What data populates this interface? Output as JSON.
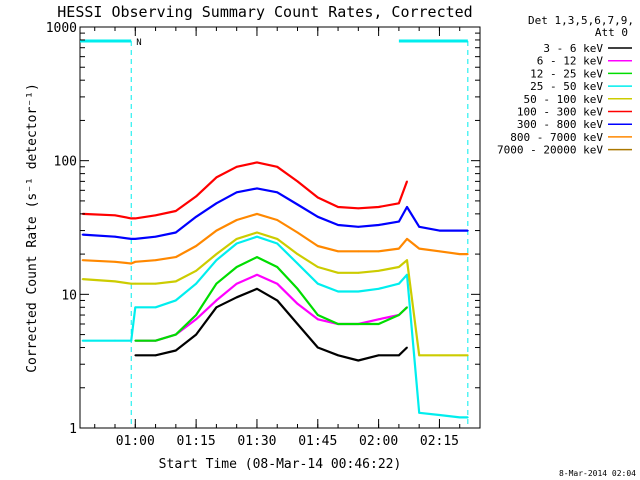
{
  "chart_data": {
    "type": "line",
    "title": "HESSI Observing Summary Count Rates, Corrected",
    "xlabel": "Start Time (08-Mar-14 00:46:22)",
    "ylabel": "Corrected Count Rate (s⁻¹ detector⁻¹)",
    "x_unit": "time (HH:MM, 08-Mar-2014)",
    "xlim": [
      "00:46:22",
      "02:25:00"
    ],
    "x_ticks": [
      "01:00",
      "01:15",
      "01:30",
      "01:45",
      "02:00",
      "02:15"
    ],
    "y_scale": "log",
    "ylim": [
      1,
      1000
    ],
    "y_ticks": [
      "1",
      "10",
      "100",
      "1000"
    ],
    "grid": false,
    "legend_position": "right",
    "legend_header": [
      "Det 1,3,5,6,7,9,",
      "Att 0"
    ],
    "date_stamp": "8-Mar-2014 02:04",
    "night_label": "N",
    "x": [
      "00:47",
      "00:55",
      "00:59",
      "01:00",
      "01:05",
      "01:10",
      "01:15",
      "01:20",
      "01:25",
      "01:30",
      "01:35",
      "01:40",
      "01:45",
      "01:50",
      "01:55",
      "02:00",
      "02:05",
      "02:07",
      "02:10",
      "02:15",
      "02:20",
      "02:22"
    ],
    "series": [
      {
        "name": "3 - 6 keV",
        "color": "#000000",
        "values": [
          null,
          null,
          null,
          3.5,
          3.5,
          3.8,
          5,
          8,
          9.5,
          11,
          9,
          6,
          4,
          3.5,
          3.2,
          3.5,
          3.5,
          4,
          null,
          null,
          null,
          null
        ]
      },
      {
        "name": "6 - 12 keV",
        "color": "#ff00ff",
        "values": [
          null,
          null,
          null,
          4.5,
          4.5,
          5,
          6.5,
          9,
          12,
          14,
          12,
          8.5,
          6.5,
          6,
          6,
          6.5,
          7,
          8,
          null,
          null,
          null,
          null
        ]
      },
      {
        "name": "12 - 25 keV",
        "color": "#00dd00",
        "values": [
          null,
          null,
          null,
          4.5,
          4.5,
          5,
          7,
          12,
          16,
          19,
          16,
          11,
          7,
          6,
          6,
          6,
          7,
          8,
          null,
          null,
          null,
          null
        ]
      },
      {
        "name": "25 - 50 keV",
        "color": "#00eeee",
        "values": [
          4.5,
          4.5,
          4.5,
          8,
          8,
          9,
          12,
          18,
          24,
          27,
          24,
          17,
          12,
          10.5,
          10.5,
          11,
          12,
          14,
          1.3,
          1.25,
          1.2,
          1.2
        ]
      },
      {
        "name": "50 - 100 keV",
        "color": "#cccc00",
        "values": [
          13,
          12.5,
          12,
          12,
          12,
          12.5,
          15,
          20,
          26,
          29,
          26,
          20,
          16,
          14.5,
          14.5,
          15,
          16,
          18,
          3.5,
          3.5,
          3.5,
          3.5
        ]
      },
      {
        "name": "100 - 300 keV",
        "color": "#ff0000",
        "values": [
          40,
          39,
          37,
          37,
          39,
          42,
          54,
          75,
          90,
          97,
          90,
          70,
          53,
          45,
          44,
          45,
          48,
          70,
          null,
          null,
          null,
          null
        ]
      },
      {
        "name": "300 - 800 keV",
        "color": "#0000ff",
        "values": [
          28,
          27,
          26,
          26,
          27,
          29,
          38,
          48,
          58,
          62,
          58,
          47,
          38,
          33,
          32,
          33,
          35,
          45,
          32,
          30,
          30,
          30
        ]
      },
      {
        "name": "800 - 7000 keV",
        "color": "#ff8800",
        "values": [
          18,
          17.5,
          17,
          17.5,
          18,
          19,
          23,
          30,
          36,
          40,
          36,
          29,
          23,
          21,
          21,
          21,
          22,
          26,
          22,
          21,
          20,
          20
        ]
      },
      {
        "name": "7000 - 20000 keV",
        "color": "#aa7700",
        "values": [
          null,
          null,
          null,
          null,
          null,
          null,
          null,
          null,
          null,
          null,
          null,
          null,
          null,
          null,
          null,
          null,
          null,
          null,
          null,
          null,
          null,
          null
        ]
      }
    ]
  }
}
